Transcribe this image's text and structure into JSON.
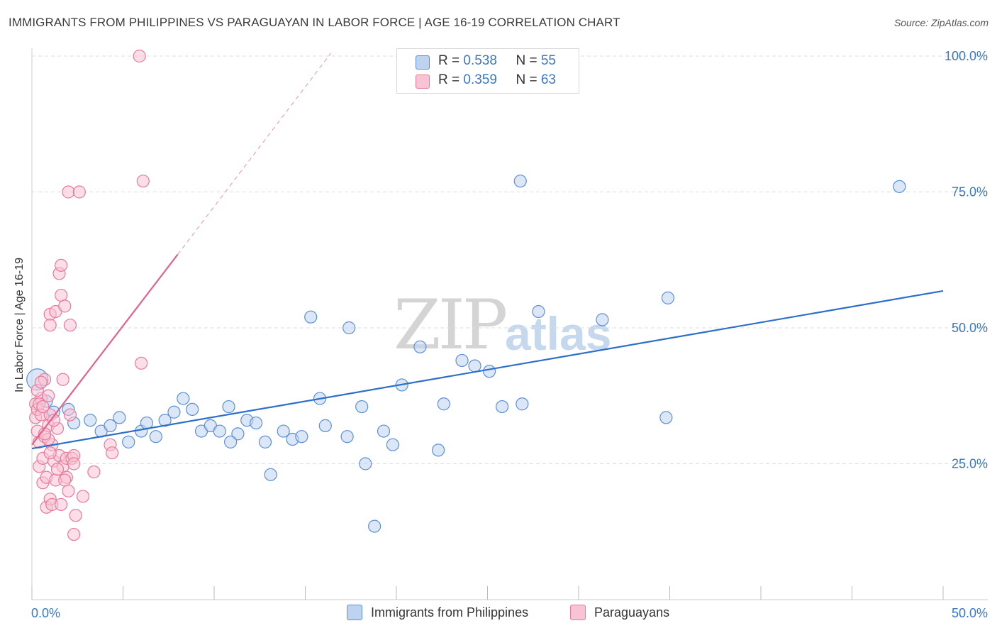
{
  "title": "IMMIGRANTS FROM PHILIPPINES VS PARAGUAYAN IN LABOR FORCE | AGE 16-19 CORRELATION CHART",
  "source": "Source: ZipAtlas.com",
  "watermark": {
    "zip": "ZIP",
    "atlas": "atlas"
  },
  "colors": {
    "blue": "#5b8fd6",
    "blue_fill": "#bdd3f0",
    "blue_line": "#2c6fc9",
    "pink": "#e8799c",
    "pink_fill": "#f8c3d4",
    "pink_line": "#e0628e",
    "axis_text": "#3b78c4",
    "grid": "#dddddd"
  },
  "legend_top": [
    {
      "swatch": "blue",
      "r_label": "R = ",
      "r_value": "0.538",
      "n_label": "N = ",
      "n_value": "55"
    },
    {
      "swatch": "pink",
      "r_label": "R = ",
      "r_value": "0.359",
      "n_label": "N = ",
      "n_value": "63"
    }
  ],
  "legend_bottom": [
    {
      "swatch": "blue",
      "label": "Immigrants from Philippines"
    },
    {
      "swatch": "pink",
      "label": "Paraguayans"
    }
  ],
  "chart_data": {
    "type": "scatter",
    "title": "IMMIGRANTS FROM PHILIPPINES VS PARAGUAYAN IN LABOR FORCE | AGE 16-19 CORRELATION CHART",
    "xlabel": "",
    "ylabel": "In Labor Force | Age 16-19",
    "xlim": [
      0,
      50
    ],
    "ylim": [
      0,
      105
    ],
    "x_tick_labels": [
      "0.0%",
      "50.0%"
    ],
    "y_ticks": [
      25,
      50,
      75,
      100
    ],
    "y_tick_labels": [
      "25.0%",
      "50.0%",
      "75.0%",
      "100.0%"
    ],
    "grid": true,
    "legend_position": "top-center",
    "series": [
      {
        "name": "Immigrants from Philippines",
        "color": "blue",
        "R": 0.538,
        "N": 55,
        "trend": {
          "x": [
            0,
            50
          ],
          "y": [
            27.8,
            56.8
          ]
        },
        "points": [
          [
            0.3,
            40.5
          ],
          [
            0.8,
            36.5
          ],
          [
            1.2,
            34.5
          ],
          [
            2.0,
            35.0
          ],
          [
            2.3,
            32.5
          ],
          [
            3.2,
            33.0
          ],
          [
            3.8,
            31.0
          ],
          [
            4.3,
            32.0
          ],
          [
            4.8,
            33.5
          ],
          [
            5.3,
            29.0
          ],
          [
            6.0,
            31.0
          ],
          [
            6.3,
            32.5
          ],
          [
            6.8,
            30.0
          ],
          [
            7.3,
            33.0
          ],
          [
            7.8,
            34.5
          ],
          [
            8.3,
            37.0
          ],
          [
            8.8,
            35.0
          ],
          [
            9.3,
            31.0
          ],
          [
            9.8,
            32.0
          ],
          [
            10.3,
            31.0
          ],
          [
            10.8,
            35.5
          ],
          [
            11.3,
            30.5
          ],
          [
            11.8,
            33.0
          ],
          [
            12.3,
            32.5
          ],
          [
            12.8,
            29.0
          ],
          [
            13.1,
            23.0
          ],
          [
            13.8,
            31.0
          ],
          [
            14.3,
            29.5
          ],
          [
            14.8,
            30.0
          ],
          [
            15.3,
            52.0
          ],
          [
            15.8,
            37.0
          ],
          [
            16.1,
            32.0
          ],
          [
            17.3,
            30.0
          ],
          [
            17.4,
            50.0
          ],
          [
            18.1,
            35.5
          ],
          [
            18.3,
            25.0
          ],
          [
            18.8,
            13.5
          ],
          [
            19.3,
            31.0
          ],
          [
            19.8,
            28.5
          ],
          [
            20.3,
            39.5
          ],
          [
            21.3,
            46.5
          ],
          [
            22.3,
            27.5
          ],
          [
            22.6,
            36.0
          ],
          [
            23.6,
            44.0
          ],
          [
            24.3,
            43.0
          ],
          [
            25.1,
            42.0
          ],
          [
            25.8,
            35.5
          ],
          [
            26.8,
            77.0
          ],
          [
            26.9,
            36.0
          ],
          [
            27.8,
            53.0
          ],
          [
            31.3,
            51.5
          ],
          [
            34.8,
            33.5
          ],
          [
            34.9,
            55.5
          ],
          [
            47.6,
            76.0
          ],
          [
            10.9,
            29.0
          ]
        ]
      },
      {
        "name": "Paraguayans",
        "color": "pink",
        "R": 0.359,
        "N": 63,
        "trend_solid": {
          "x": [
            0,
            8.0
          ],
          "y": [
            28.5,
            63.5
          ]
        },
        "trend_dashed": {
          "x": [
            8.0,
            16.4
          ],
          "y": [
            63.5,
            100.5
          ]
        },
        "points": [
          [
            0.2,
            36.0
          ],
          [
            0.2,
            33.5
          ],
          [
            0.3,
            35.0
          ],
          [
            0.3,
            31.0
          ],
          [
            0.4,
            29.0
          ],
          [
            0.4,
            24.5
          ],
          [
            0.5,
            37.0
          ],
          [
            0.5,
            34.0
          ],
          [
            0.6,
            21.5
          ],
          [
            0.6,
            26.0
          ],
          [
            0.7,
            40.5
          ],
          [
            0.7,
            30.0
          ],
          [
            0.8,
            17.0
          ],
          [
            0.8,
            22.5
          ],
          [
            0.9,
            37.5
          ],
          [
            0.9,
            32.0
          ],
          [
            1.0,
            52.5
          ],
          [
            1.0,
            50.5
          ],
          [
            1.0,
            34.0
          ],
          [
            1.0,
            18.5
          ],
          [
            1.1,
            28.5
          ],
          [
            1.1,
            17.5
          ],
          [
            1.2,
            25.5
          ],
          [
            1.3,
            53.0
          ],
          [
            1.3,
            22.0
          ],
          [
            1.4,
            31.5
          ],
          [
            1.5,
            60.0
          ],
          [
            1.5,
            26.5
          ],
          [
            1.6,
            56.0
          ],
          [
            1.6,
            61.5
          ],
          [
            1.6,
            17.5
          ],
          [
            1.7,
            40.5
          ],
          [
            1.7,
            24.5
          ],
          [
            1.8,
            54.0
          ],
          [
            1.9,
            26.0
          ],
          [
            1.9,
            22.5
          ],
          [
            2.0,
            75.0
          ],
          [
            2.0,
            20.0
          ],
          [
            2.1,
            50.5
          ],
          [
            2.1,
            34.0
          ],
          [
            2.2,
            26.0
          ],
          [
            2.3,
            26.5
          ],
          [
            2.3,
            25.0
          ],
          [
            2.3,
            12.0
          ],
          [
            2.4,
            15.5
          ],
          [
            2.6,
            75.0
          ],
          [
            2.8,
            19.0
          ],
          [
            3.4,
            23.5
          ],
          [
            4.3,
            28.5
          ],
          [
            4.4,
            27.0
          ],
          [
            5.9,
            100.0
          ],
          [
            6.0,
            43.5
          ],
          [
            6.1,
            77.0
          ],
          [
            0.4,
            36.0
          ],
          [
            0.6,
            35.5
          ],
          [
            0.9,
            29.5
          ],
          [
            1.2,
            33.0
          ],
          [
            1.4,
            24.0
          ],
          [
            0.3,
            38.5
          ],
          [
            0.5,
            40.0
          ],
          [
            1.8,
            22.0
          ],
          [
            0.7,
            30.5
          ],
          [
            1.0,
            27.0
          ]
        ]
      }
    ]
  }
}
